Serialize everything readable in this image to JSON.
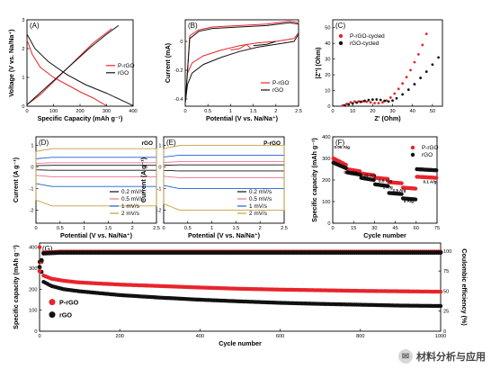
{
  "watermark": {
    "icon": "wechat-icon",
    "text": "材料分析与应用"
  },
  "colors": {
    "red": "#e8242b",
    "black": "#111111",
    "blue": "#1e5fd8",
    "violet": "#7b3fb0",
    "cyan": "#4aa8d8",
    "pink": "#f07090",
    "gold": "#c8a040"
  },
  "chart_data": [
    {
      "panel": "A",
      "type": "line",
      "xlabel": "Specific Capacity (mAh g⁻¹)",
      "ylabel": "Voltage (V vs. Na/Na⁺)",
      "xlim": [
        0,
        400
      ],
      "ylim": [
        0,
        3
      ],
      "xticks": [
        0,
        100,
        200,
        300,
        400
      ],
      "yticks": [
        0,
        1,
        2,
        3
      ],
      "legend": "center-right",
      "series": [
        {
          "name": "P-rGO",
          "color": "red",
          "x": [
            0,
            20,
            50,
            100,
            150,
            200,
            250,
            280,
            300
          ],
          "y": [
            2.3,
            1.8,
            1.35,
            1.0,
            0.75,
            0.5,
            0.28,
            0.12,
            0.02
          ]
        },
        {
          "name": "",
          "color": "red",
          "x": [
            0,
            50,
            100,
            150,
            200,
            250,
            300,
            320
          ],
          "y": [
            0.05,
            0.4,
            0.85,
            1.3,
            1.75,
            2.2,
            2.55,
            2.7
          ]
        },
        {
          "name": "rGO",
          "color": "black",
          "x": [
            0,
            30,
            80,
            150,
            220,
            300,
            370,
            400
          ],
          "y": [
            2.5,
            2.0,
            1.55,
            1.1,
            0.75,
            0.45,
            0.15,
            0.02
          ]
        },
        {
          "name": "",
          "color": "black",
          "x": [
            0,
            60,
            120,
            180,
            240,
            300,
            345
          ],
          "y": [
            0.05,
            0.55,
            1.05,
            1.55,
            2.05,
            2.5,
            2.8
          ]
        }
      ]
    },
    {
      "panel": "B",
      "type": "line",
      "xlabel": "Potential (V vs. Na/Na⁺)",
      "ylabel": "Current (mA)",
      "xlim": [
        0,
        2.5
      ],
      "ylim": [
        -0.45,
        0.15
      ],
      "xticks": [
        0,
        0.5,
        1.0,
        1.5,
        2.0,
        2.5
      ],
      "yticks": [
        0.0,
        -0.2,
        -0.4
      ],
      "legend": "bottom-right",
      "series": [
        {
          "name": "P-rGO",
          "color": "red",
          "x": [
            0.02,
            0.05,
            0.15,
            0.4,
            0.8,
            1.2,
            1.6,
            2.0,
            2.4,
            2.5,
            2.5,
            2.3,
            1.8,
            1.2,
            0.6,
            0.3,
            0.1,
            0.02
          ],
          "y": [
            -0.35,
            -0.22,
            -0.15,
            -0.1,
            -0.06,
            -0.03,
            -0.01,
            0.0,
            0.02,
            0.06,
            0.13,
            0.14,
            0.12,
            0.11,
            0.1,
            0.08,
            0.04,
            -0.35
          ]
        },
        {
          "name": "rGO",
          "color": "black",
          "x": [
            0.0,
            0.05,
            0.15,
            0.4,
            0.8,
            1.2,
            1.6,
            2.0,
            2.4,
            2.5,
            2.5,
            2.3,
            1.8,
            1.2,
            0.6,
            0.3,
            0.1,
            0.0
          ],
          "y": [
            -0.43,
            -0.3,
            -0.22,
            -0.16,
            -0.11,
            -0.07,
            -0.04,
            -0.02,
            0.0,
            0.05,
            0.12,
            0.13,
            0.11,
            0.1,
            0.09,
            0.07,
            0.02,
            -0.43
          ]
        },
        {
          "name": "",
          "color": "red",
          "x": [
            1.0,
            1.2,
            1.35,
            1.45
          ],
          "y": [
            -0.06,
            -0.05,
            -0.02,
            -0.05
          ]
        },
        {
          "name": "",
          "color": "black",
          "x": [
            1.5,
            1.8,
            2.0
          ],
          "y": [
            -0.03,
            -0.02,
            0.0
          ]
        }
      ]
    },
    {
      "panel": "C",
      "type": "scatter",
      "xlabel": "Z' (Ohm)",
      "ylabel": "|Z''| (Ohm)",
      "xlim": [
        0,
        55
      ],
      "ylim": [
        0,
        55
      ],
      "xticks": [
        0,
        10,
        20,
        30,
        40,
        50
      ],
      "yticks": [
        0,
        10,
        20,
        30,
        40,
        50
      ],
      "legend": "top-left",
      "series": [
        {
          "name": "P-rGO-cycled",
          "color": "red",
          "x": [
            5,
            7,
            9,
            11,
            13,
            15,
            17,
            19,
            21,
            23,
            25,
            27,
            29,
            31,
            33,
            35,
            37,
            39,
            41,
            43,
            45,
            47
          ],
          "y": [
            0.5,
            1.5,
            2.5,
            3.0,
            3.1,
            3.0,
            2.8,
            2.4,
            2.0,
            1.9,
            2.4,
            3.6,
            5.5,
            8.0,
            11,
            14.5,
            18.5,
            23,
            28,
            33,
            39,
            46
          ]
        },
        {
          "name": "rGO-cycled",
          "color": "black",
          "x": [
            6,
            8,
            10,
            12,
            14,
            16,
            18,
            20,
            22,
            24,
            26,
            28,
            30,
            32,
            35,
            38,
            41,
            44,
            47,
            50,
            53
          ],
          "y": [
            0.5,
            1.2,
            1.8,
            2.3,
            2.8,
            3.4,
            3.9,
            4.2,
            4.3,
            4.0,
            3.4,
            3.0,
            3.6,
            5.0,
            7.5,
            10.5,
            14,
            18,
            22,
            26.5,
            31
          ]
        }
      ]
    },
    {
      "panel": "D",
      "type": "line",
      "label": "rGO",
      "xlabel": "Potential (V vs. Na/Na⁺)",
      "ylabel": "Current (A g⁻¹)",
      "xlim": [
        0,
        2.5
      ],
      "ylim": [
        -2.6,
        1.4
      ],
      "xticks": [
        0,
        0.5,
        1.0,
        1.5,
        2.0,
        2.5
      ],
      "yticks": [
        1,
        0,
        -1,
        -2
      ],
      "legend": "bottom-right",
      "series": [
        {
          "name": "0.2 mV/s",
          "color": "black",
          "upper": 0.08,
          "lower": -0.15
        },
        {
          "name": "0.5 mV/s",
          "color": "pink",
          "upper": 0.2,
          "lower": -0.45
        },
        {
          "name": "1 mV/s",
          "color": "blue",
          "upper": 0.45,
          "lower": -0.9
        },
        {
          "name": "2 mV/s",
          "color": "gold",
          "upper": 0.85,
          "lower": -1.8
        }
      ]
    },
    {
      "panel": "E",
      "type": "line",
      "label": "P-rGO",
      "xlabel": "Potential (V vs. Na/Na⁺)",
      "ylabel": "Current (A g⁻¹)",
      "xlim": [
        0,
        2.5
      ],
      "ylim": [
        -2.6,
        1.4
      ],
      "xticks": [
        0,
        0.5,
        1.0,
        1.5,
        2.0,
        2.5
      ],
      "yticks": [
        1,
        0,
        -1,
        -2
      ],
      "legend": "bottom-right",
      "series": [
        {
          "name": "0.2 mV/s",
          "color": "black",
          "upper": 0.1,
          "lower": -0.18
        },
        {
          "name": "0.5 mV/s",
          "color": "pink",
          "upper": 0.25,
          "lower": -0.5
        },
        {
          "name": "1 mV/s",
          "color": "blue",
          "upper": 0.55,
          "lower": -1.0
        },
        {
          "name": "2 mV/s",
          "color": "gold",
          "upper": 1.0,
          "lower": -2.0
        }
      ]
    },
    {
      "panel": "F",
      "type": "scatter",
      "xlabel": "Cycle number",
      "ylabel": "Specific capacity (mAh g⁻¹)",
      "xlim": [
        0,
        75
      ],
      "ylim": [
        0,
        400
      ],
      "xticks": [
        0,
        15,
        30,
        45,
        60,
        75
      ],
      "yticks": [
        0,
        100,
        200,
        300,
        400
      ],
      "legend": "top-right",
      "annotations": [
        {
          "text": "0.05 A/g",
          "x": 1,
          "y": 345
        },
        {
          "text": "0.1 A/g",
          "x": 8,
          "y": 230
        },
        {
          "text": "0.25 A/g",
          "x": 20,
          "y": 215
        },
        {
          "text": "0.5 A/g",
          "x": 33,
          "y": 190
        },
        {
          "text": "1 A/g",
          "x": 36,
          "y": 160
        },
        {
          "text": "2.5 A/g",
          "x": 43,
          "y": 145
        },
        {
          "text": "5 A/g",
          "x": 51,
          "y": 95
        },
        {
          "text": "0.1 A/g",
          "x": 65,
          "y": 185
        }
      ],
      "series": [
        {
          "name": "P-rGO",
          "color": "red",
          "steps": [
            [
              0,
              10,
              300,
              270
            ],
            [
              10,
              20,
              250,
              240
            ],
            [
              20,
              30,
              230,
              222
            ],
            [
              30,
              40,
              210,
              205
            ],
            [
              40,
              50,
              190,
              185
            ],
            [
              50,
              60,
              165,
              160
            ],
            [
              60,
              75,
              215,
              210
            ]
          ]
        },
        {
          "name": "rGO",
          "color": "black",
          "steps": [
            [
              0,
              10,
              280,
              255
            ],
            [
              10,
              20,
              235,
              225
            ],
            [
              20,
              30,
              210,
              200
            ],
            [
              30,
              40,
              180,
              172
            ],
            [
              40,
              50,
              140,
              135
            ],
            [
              50,
              60,
              115,
              110
            ],
            [
              60,
              75,
              250,
              245
            ]
          ]
        }
      ]
    },
    {
      "panel": "G",
      "type": "scatter",
      "xlabel": "Cycle number",
      "ylabel": "Specific capacity (mAh g⁻¹)",
      "ylabel2": "Coulombic efficiency (%)",
      "xlim": [
        0,
        1000
      ],
      "ylim": [
        0,
        420
      ],
      "ylim2": [
        0,
        110
      ],
      "xticks": [
        0,
        200,
        400,
        600,
        800,
        1000
      ],
      "yticks": [
        0,
        100,
        200,
        300,
        400
      ],
      "yticks2": [
        0,
        25,
        50,
        75,
        100
      ],
      "legend": "center-left",
      "series": [
        {
          "name": "P-rGO",
          "color": "red",
          "x": [
            0,
            10,
            30,
            60,
            100,
            200,
            300,
            400,
            500,
            600,
            700,
            800,
            900,
            1000
          ],
          "y": [
            400,
            265,
            250,
            240,
            232,
            222,
            215,
            208,
            202,
            198,
            195,
            192,
            190,
            188
          ]
        },
        {
          "name": "rGO",
          "color": "black",
          "x": [
            0,
            10,
            30,
            60,
            100,
            200,
            300,
            400,
            500,
            600,
            700,
            800,
            900,
            1000
          ],
          "y": [
            330,
            235,
            215,
            200,
            190,
            172,
            160,
            150,
            142,
            135,
            130,
            126,
            122,
            120
          ]
        },
        {
          "name": "",
          "axis": "right",
          "color": "red",
          "x": [
            0,
            10,
            50,
            100,
            300,
            500,
            700,
            1000
          ],
          "y": [
            75,
            98,
            99,
            99,
            99,
            99,
            99,
            99
          ]
        },
        {
          "name": "",
          "axis": "right",
          "color": "black",
          "x": [
            0,
            10,
            50,
            100,
            300,
            500,
            700,
            1000
          ],
          "y": [
            80,
            97,
            98,
            98,
            98,
            98,
            98,
            98
          ]
        }
      ]
    }
  ]
}
